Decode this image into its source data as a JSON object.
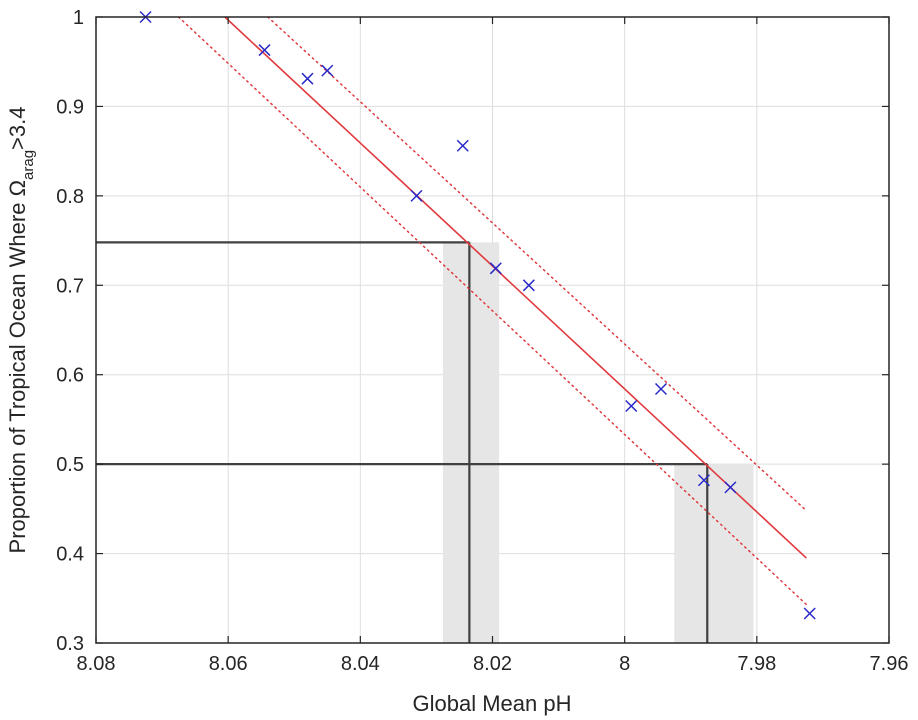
{
  "chart_data": {
    "type": "scatter",
    "xlabel": "Global Mean pH",
    "ylabel": {
      "prefix": "Proportion of Tropical Ocean Where Ω",
      "subscript": "arag",
      "suffix": ">3.4"
    },
    "xlim": [
      8.08,
      7.96
    ],
    "x_reversed": true,
    "ylim": [
      0.3,
      1.0
    ],
    "xticks": [
      8.08,
      8.06,
      8.04,
      8.02,
      8.0,
      7.98,
      7.96
    ],
    "xtick_labels": [
      "8.08",
      "8.06",
      "8.04",
      "8.02",
      "8",
      "7.98",
      "7.96"
    ],
    "yticks": [
      0.3,
      0.4,
      0.5,
      0.6,
      0.7,
      0.8,
      0.9,
      1.0
    ],
    "ytick_labels": [
      "0.3",
      "0.4",
      "0.5",
      "0.6",
      "0.7",
      "0.8",
      "0.9",
      "1"
    ],
    "grid": true,
    "points": {
      "x": [
        8.0725,
        8.0545,
        8.048,
        8.045,
        8.0315,
        8.0245,
        8.0195,
        8.0145,
        7.999,
        7.9945,
        7.988,
        7.984,
        7.972
      ],
      "y": [
        1.0,
        0.963,
        0.931,
        0.94,
        0.8,
        0.856,
        0.719,
        0.7,
        0.565,
        0.584,
        0.482,
        0.474,
        0.333
      ],
      "color": "#2929c9",
      "marker": "x"
    },
    "fit_line": {
      "x": [
        8.0605,
        7.9725
      ],
      "y": [
        1.0,
        0.395
      ],
      "color": "#e0393e"
    },
    "confidence_band": {
      "upper": {
        "x": [
          8.054,
          7.9725
        ],
        "y": [
          1.0,
          0.448
        ]
      },
      "lower": {
        "x": [
          8.0675,
          7.9725
        ],
        "y": [
          1.0,
          0.343
        ]
      },
      "color": "#e0393e",
      "style": "dotted"
    },
    "reference_lines": [
      {
        "y": 0.748,
        "x": 8.0235
      },
      {
        "y": 0.5,
        "x": 7.9875
      }
    ],
    "reference_line_color": "#404040",
    "shaded_ranges": [
      {
        "x": [
          8.0275,
          8.019
        ],
        "ymax": 0.748
      },
      {
        "x": [
          7.9925,
          7.9805
        ],
        "ymax": 0.5
      }
    ],
    "shade_color": "#e6e6e6"
  }
}
